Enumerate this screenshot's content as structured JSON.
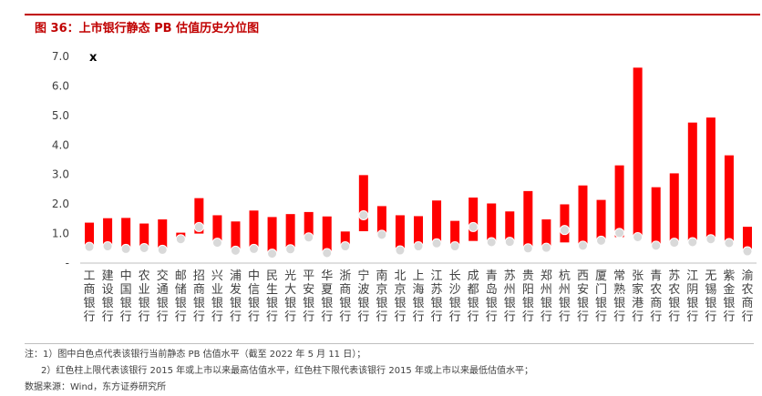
{
  "header": {
    "title": "图 36：上市银行静态 PB 估值历史分位图"
  },
  "chart_data": {
    "type": "bar",
    "subtype": "floating-range-with-marker",
    "title": "",
    "xlabel": "",
    "ylabel": "",
    "ylim": [
      0,
      7
    ],
    "yticks": [
      "-",
      "1.0",
      "2.0",
      "3.0",
      "4.0",
      "5.0",
      "6.0",
      "7.0"
    ],
    "corner_annotation": "x",
    "grid": false,
    "legend": "none",
    "colors": {
      "bar": "#ff0000",
      "marker": "#d9d9d9",
      "marker_edge": "#ffffff",
      "axis": "#bfbfbf",
      "text": "#404040"
    },
    "categories": [
      "工商银行",
      "建设银行",
      "中国银行",
      "农业银行",
      "交通银行",
      "邮储银行",
      "招商银行",
      "兴业银行",
      "浦发银行",
      "中信银行",
      "民生银行",
      "光大银行",
      "平安银行",
      "华夏银行",
      "浙商银行",
      "宁波银行",
      "南京银行",
      "北京银行",
      "上海银行",
      "江苏银行",
      "长沙银行",
      "成都银行",
      "青岛银行",
      "苏州银行",
      "贵阳银行",
      "郑州银行",
      "杭州银行",
      "西安银行",
      "厦门银行",
      "常熟银行",
      "张家港行",
      "青农商行",
      "苏农银行",
      "江阴银行",
      "无锡银行",
      "紫金银行",
      "渝农商行"
    ],
    "series": [
      {
        "values": {
          "high": [
            1.37,
            1.52,
            1.53,
            1.34,
            1.48,
            1.03,
            2.2,
            1.62,
            1.41,
            1.78,
            1.56,
            1.66,
            1.73,
            1.58,
            1.07,
            2.98,
            1.93,
            1.62,
            1.59,
            2.12,
            1.43,
            2.22,
            2.02,
            1.75,
            2.44,
            1.48,
            1.99,
            2.63,
            2.14,
            3.31,
            6.62,
            2.57,
            3.04,
            4.76,
            4.93,
            3.65,
            1.23
          ],
          "low": [
            0.55,
            0.57,
            0.48,
            0.51,
            0.45,
            0.8,
            1.0,
            0.68,
            0.42,
            0.48,
            0.31,
            0.46,
            0.85,
            0.34,
            0.56,
            1.08,
            0.9,
            0.43,
            0.57,
            0.65,
            0.56,
            0.75,
            0.7,
            0.71,
            0.5,
            0.51,
            0.7,
            0.58,
            0.75,
            0.88,
            0.88,
            0.58,
            0.68,
            0.7,
            0.78,
            0.68,
            0.4
          ],
          "current": [
            0.55,
            0.57,
            0.48,
            0.51,
            0.45,
            0.81,
            1.22,
            0.69,
            0.42,
            0.48,
            0.32,
            0.47,
            0.87,
            0.34,
            0.57,
            1.62,
            0.96,
            0.43,
            0.57,
            0.67,
            0.57,
            1.22,
            0.71,
            0.72,
            0.5,
            0.52,
            1.12,
            0.59,
            0.76,
            1.02,
            0.88,
            0.59,
            0.69,
            0.71,
            0.81,
            0.68,
            0.4
          ]
        }
      }
    ]
  },
  "notes": {
    "line1": "注：1）图中白色点代表该银行当前静态 PB 估值水平（截至 2022 年 5 月 11 日）；",
    "line2": "2）红色柱上限代表该银行 2015 年或上市以来最高估值水平，红色柱下限代表该银行 2015 年或上市以来最低估值水平；",
    "source": "数据来源：Wind，东方证券研究所"
  }
}
